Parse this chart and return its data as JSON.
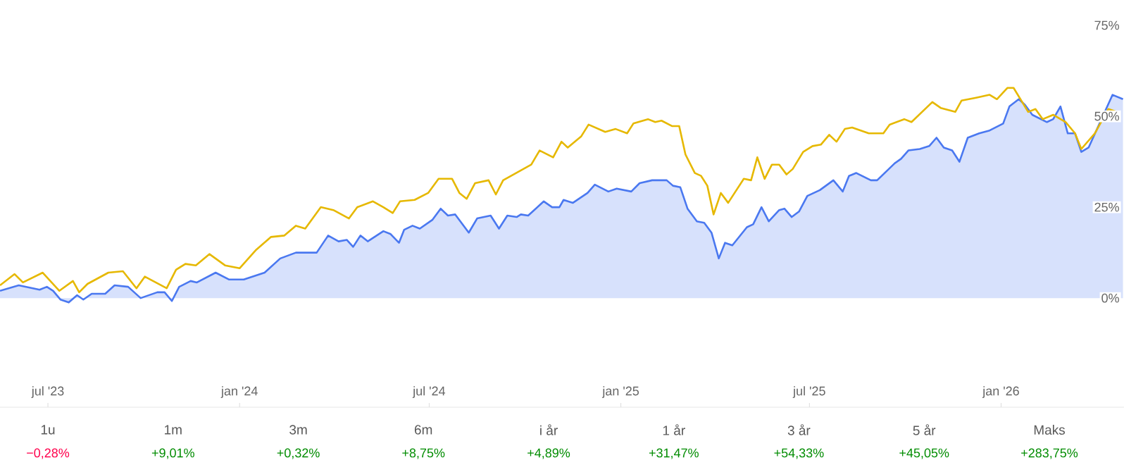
{
  "chart_data": {
    "type": "line",
    "xlim": [
      "2023-05-16",
      "2026-04-29"
    ],
    "ylim": [
      -30,
      75
    ],
    "xticks": [
      {
        "value": "2023-07-01",
        "label": "jul '23"
      },
      {
        "value": "2024-01-01",
        "label": "jan '24"
      },
      {
        "value": "2024-07-01",
        "label": "jul '24"
      },
      {
        "value": "2025-01-01",
        "label": "jan '25"
      },
      {
        "value": "2025-07-01",
        "label": "jul '25"
      },
      {
        "value": "2026-01-01",
        "label": "jan '26"
      }
    ],
    "yticks": [
      {
        "value": 0,
        "label": "0%"
      },
      {
        "value": 25,
        "label": "25%"
      },
      {
        "value": 50,
        "label": "50%"
      },
      {
        "value": 75,
        "label": "75%"
      }
    ],
    "series": [
      {
        "type": "area",
        "color": "#4a78f0",
        "x": [
          "2023-05-16",
          "2023-06-03",
          "2023-06-23",
          "2023-06-30",
          "2023-07-06",
          "2023-07-13",
          "2023-07-21",
          "2023-07-29",
          "2023-08-04",
          "2023-08-12",
          "2023-08-25",
          "2023-09-03",
          "2023-09-16",
          "2023-09-28",
          "2023-10-14",
          "2023-10-21",
          "2023-10-28",
          "2023-11-04",
          "2023-11-15",
          "2023-11-21",
          "2023-12-09",
          "2023-12-22",
          "2024-01-05",
          "2024-01-25",
          "2024-02-09",
          "2024-02-24",
          "2024-03-15",
          "2024-03-26",
          "2024-04-05",
          "2024-04-13",
          "2024-04-19",
          "2024-04-26",
          "2024-05-03",
          "2024-05-18",
          "2024-05-25",
          "2024-06-02",
          "2024-06-07",
          "2024-06-15",
          "2024-06-22",
          "2024-07-04",
          "2024-07-12",
          "2024-07-19",
          "2024-07-26",
          "2024-08-08",
          "2024-08-16",
          "2024-08-29",
          "2024-09-06",
          "2024-09-14",
          "2024-09-23",
          "2024-09-27",
          "2024-10-04",
          "2024-10-19",
          "2024-10-27",
          "2024-11-03",
          "2024-11-07",
          "2024-11-16",
          "2024-11-30",
          "2024-12-07",
          "2024-12-20",
          "2024-12-28",
          "2025-01-11",
          "2025-01-19",
          "2025-01-31",
          "2025-02-14",
          "2025-02-20",
          "2025-02-27",
          "2025-03-06",
          "2025-03-15",
          "2025-03-22",
          "2025-03-29",
          "2025-04-05",
          "2025-04-11",
          "2025-04-18",
          "2025-05-02",
          "2025-05-08",
          "2025-05-16",
          "2025-05-23",
          "2025-06-02",
          "2025-06-07",
          "2025-06-14",
          "2025-06-21",
          "2025-06-29",
          "2025-07-11",
          "2025-07-24",
          "2025-08-02",
          "2025-08-08",
          "2025-08-15",
          "2025-08-29",
          "2025-09-04",
          "2025-09-21",
          "2025-09-27",
          "2025-10-04",
          "2025-10-15",
          "2025-10-24",
          "2025-10-31",
          "2025-11-07",
          "2025-11-15",
          "2025-11-22",
          "2025-11-30",
          "2025-12-11",
          "2025-12-21",
          "2026-01-03",
          "2026-01-09",
          "2026-01-18",
          "2026-01-24",
          "2026-01-31",
          "2026-02-14",
          "2026-02-20",
          "2026-02-27",
          "2026-03-06",
          "2026-03-13",
          "2026-03-19",
          "2026-03-26",
          "2026-04-18",
          "2026-04-28"
        ],
        "values": [
          2.0,
          3.5,
          2.3,
          3.1,
          2.0,
          -0.4,
          -1.2,
          0.8,
          -0.4,
          1.2,
          1.2,
          3.5,
          3.1,
          0,
          1.6,
          1.6,
          -0.8,
          3.1,
          4.7,
          4.3,
          7.0,
          5.1,
          5.1,
          7.0,
          10.9,
          12.5,
          12.5,
          17.2,
          15.6,
          16.0,
          14.1,
          17.2,
          15.6,
          18.4,
          17.6,
          15.2,
          18.8,
          19.9,
          19.1,
          21.5,
          24.6,
          22.7,
          23.0,
          18.0,
          21.9,
          22.7,
          19.1,
          22.7,
          22.3,
          23.0,
          22.7,
          26.6,
          25.0,
          25.0,
          27.0,
          26.2,
          28.9,
          31.2,
          29.3,
          30.1,
          29.3,
          31.6,
          32.4,
          32.4,
          30.9,
          30.5,
          24.6,
          21.1,
          20.7,
          18.0,
          10.9,
          15.2,
          14.5,
          19.5,
          20.3,
          25.0,
          21.1,
          24.2,
          24.6,
          22.3,
          23.8,
          28.1,
          29.7,
          32.4,
          29.3,
          33.6,
          34.4,
          32.4,
          32.4,
          37.1,
          38.3,
          40.6,
          41.0,
          41.8,
          44.1,
          41.4,
          40.6,
          37.5,
          44.1,
          45.3,
          46.1,
          48.0,
          52.7,
          54.7,
          53.1,
          50.4,
          48.4,
          49.2,
          52.7,
          45.3,
          45.3,
          40.2,
          41.4,
          55.9,
          54.7
        ]
      },
      {
        "type": "line",
        "color": "#e6b800",
        "x": [
          "2023-05-16",
          "2023-05-30",
          "2023-06-07",
          "2023-06-26",
          "2023-07-12",
          "2023-07-25",
          "2023-07-31",
          "2023-08-08",
          "2023-08-28",
          "2023-09-11",
          "2023-09-24",
          "2023-10-02",
          "2023-10-23",
          "2023-11-01",
          "2023-11-10",
          "2023-11-20",
          "2023-12-03",
          "2023-12-18",
          "2024-01-01",
          "2024-01-17",
          "2024-01-31",
          "2024-02-13",
          "2024-02-24",
          "2024-03-04",
          "2024-03-19",
          "2024-03-31",
          "2024-04-15",
          "2024-04-23",
          "2024-05-08",
          "2024-05-18",
          "2024-05-27",
          "2024-06-03",
          "2024-06-17",
          "2024-06-30",
          "2024-07-10",
          "2024-07-23",
          "2024-07-30",
          "2024-08-06",
          "2024-08-14",
          "2024-08-27",
          "2024-09-03",
          "2024-09-10",
          "2024-10-07",
          "2024-10-15",
          "2024-10-28",
          "2024-11-05",
          "2024-11-11",
          "2024-11-24",
          "2024-12-01",
          "2024-12-17",
          "2024-12-27",
          "2025-01-07",
          "2025-01-13",
          "2025-01-27",
          "2025-02-03",
          "2025-02-09",
          "2025-02-19",
          "2025-02-26",
          "2025-03-04",
          "2025-03-13",
          "2025-03-19",
          "2025-03-25",
          "2025-03-31",
          "2025-04-07",
          "2025-04-14",
          "2025-04-29",
          "2025-05-06",
          "2025-05-12",
          "2025-05-19",
          "2025-05-26",
          "2025-06-02",
          "2025-06-09",
          "2025-06-15",
          "2025-06-25",
          "2025-07-04",
          "2025-07-12",
          "2025-07-20",
          "2025-07-27",
          "2025-08-04",
          "2025-08-11",
          "2025-08-27",
          "2025-09-10",
          "2025-09-16",
          "2025-09-30",
          "2025-10-07",
          "2025-10-27",
          "2025-11-04",
          "2025-11-18",
          "2025-11-24",
          "2025-12-08",
          "2025-12-21",
          "2025-12-28",
          "2026-01-07",
          "2026-01-13",
          "2026-01-27",
          "2026-02-03",
          "2026-02-10",
          "2026-02-20",
          "2026-03-04",
          "2026-03-13",
          "2026-03-19",
          "2026-04-01",
          "2026-04-14",
          "2026-04-22"
        ],
        "values": [
          3.5,
          6.6,
          4.3,
          7.0,
          2.0,
          4.7,
          1.6,
          3.9,
          7.0,
          7.4,
          2.7,
          5.9,
          2.7,
          7.8,
          9.4,
          9.0,
          12.1,
          9.0,
          8.2,
          13.3,
          16.8,
          17.2,
          19.9,
          19.1,
          25.0,
          24.2,
          21.9,
          25.0,
          26.6,
          25.0,
          23.4,
          26.6,
          27.0,
          28.9,
          32.8,
          32.8,
          28.9,
          27.3,
          31.6,
          32.4,
          28.5,
          32.4,
          36.7,
          40.6,
          38.7,
          43.0,
          41.4,
          44.5,
          47.7,
          45.7,
          46.5,
          45.3,
          48.0,
          49.2,
          48.4,
          48.8,
          47.3,
          47.3,
          39.5,
          34.4,
          33.6,
          30.9,
          23.0,
          28.9,
          26.2,
          32.8,
          32.4,
          38.7,
          32.8,
          36.7,
          36.7,
          34.0,
          35.5,
          40.2,
          41.8,
          42.2,
          44.9,
          43.0,
          46.5,
          46.9,
          45.3,
          45.3,
          47.7,
          49.2,
          48.4,
          53.9,
          52.3,
          51.2,
          54.3,
          55.1,
          55.9,
          54.7,
          57.8,
          57.8,
          51.2,
          52.0,
          49.2,
          50.4,
          48.4,
          45.3,
          41.0,
          45.3,
          52.0,
          51.2
        ]
      }
    ],
    "annotations": [
      "1u",
      "−0,28%",
      "1m",
      "+9,01%",
      "3m",
      "+0,32%",
      "6m",
      "+8,75%",
      "i år",
      "+4,89%",
      "1 år",
      "+31,47%",
      "3 år",
      "+54,33%",
      "5 år",
      "+45,05%",
      "Maks",
      "+283,75%"
    ]
  }
}
